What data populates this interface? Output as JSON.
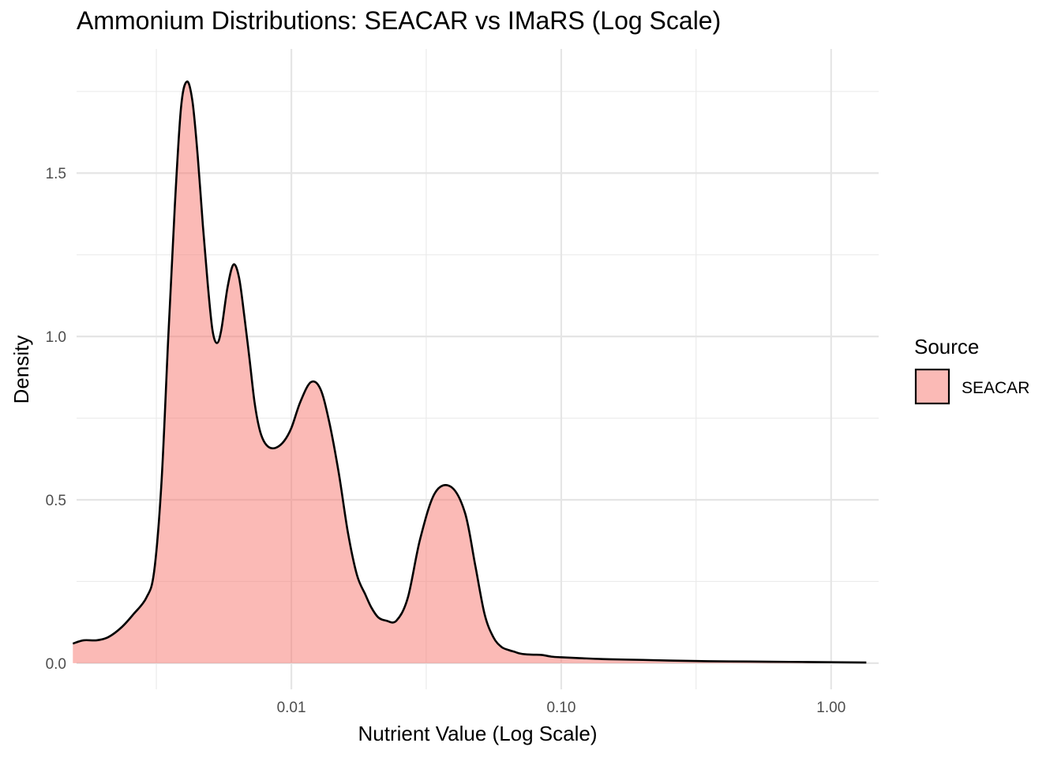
{
  "chart_data": {
    "type": "area",
    "title": "Ammonium Distributions: SEACAR vs IMaRS (Log Scale)",
    "xlabel": "Nutrient Value (Log Scale)",
    "ylabel": "Density",
    "x_scale": "log10",
    "xlim": [
      0.0016,
      1.5
    ],
    "ylim": [
      -0.08,
      1.88
    ],
    "x_ticks": [
      0.01,
      0.1,
      1.0
    ],
    "x_tick_labels": [
      "0.01",
      "0.10",
      "1.00"
    ],
    "x_minor_ticks": [
      0.00316,
      0.0316,
      0.316
    ],
    "y_ticks": [
      0.0,
      0.5,
      1.0,
      1.5
    ],
    "y_tick_labels": [
      "0.0",
      "0.5",
      "1.0",
      "1.5"
    ],
    "y_minor_ticks": [
      0.25,
      0.75,
      1.25,
      1.75
    ],
    "grid": true,
    "legend": {
      "title": "Source",
      "position": "right"
    },
    "series": [
      {
        "name": "SEACAR",
        "fill": "#f8766d",
        "fill_opacity": 0.5,
        "line_color": "#000000",
        "x": [
          0.00155,
          0.0017,
          0.0019,
          0.0021,
          0.00235,
          0.0026,
          0.0029,
          0.0031,
          0.0033,
          0.0035,
          0.0037,
          0.0039,
          0.0041,
          0.0043,
          0.0045,
          0.0047,
          0.0049,
          0.0051,
          0.0053,
          0.0055,
          0.0058,
          0.0061,
          0.0064,
          0.0067,
          0.007,
          0.0073,
          0.0076,
          0.0079,
          0.0083,
          0.0088,
          0.0094,
          0.01,
          0.0108,
          0.0118,
          0.0128,
          0.0138,
          0.015,
          0.0162,
          0.0175,
          0.0188,
          0.0198,
          0.021,
          0.0225,
          0.0245,
          0.027,
          0.03,
          0.034,
          0.039,
          0.044,
          0.048,
          0.052,
          0.056,
          0.06,
          0.064,
          0.067,
          0.07,
          0.074,
          0.079,
          0.085,
          0.092,
          0.1,
          0.12,
          0.15,
          0.2,
          0.25,
          0.35,
          0.5,
          0.7,
          1.0,
          1.35
        ],
        "y": [
          0.06,
          0.07,
          0.07,
          0.08,
          0.11,
          0.15,
          0.2,
          0.28,
          0.55,
          1.0,
          1.4,
          1.7,
          1.78,
          1.72,
          1.55,
          1.34,
          1.16,
          1.02,
          0.98,
          1.02,
          1.15,
          1.22,
          1.18,
          1.06,
          0.93,
          0.8,
          0.72,
          0.68,
          0.66,
          0.66,
          0.68,
          0.72,
          0.8,
          0.86,
          0.84,
          0.74,
          0.58,
          0.4,
          0.27,
          0.21,
          0.17,
          0.14,
          0.13,
          0.13,
          0.2,
          0.38,
          0.52,
          0.54,
          0.46,
          0.3,
          0.15,
          0.08,
          0.05,
          0.04,
          0.035,
          0.03,
          0.027,
          0.026,
          0.025,
          0.02,
          0.018,
          0.015,
          0.012,
          0.01,
          0.008,
          0.006,
          0.005,
          0.004,
          0.003,
          0.002
        ]
      }
    ]
  }
}
